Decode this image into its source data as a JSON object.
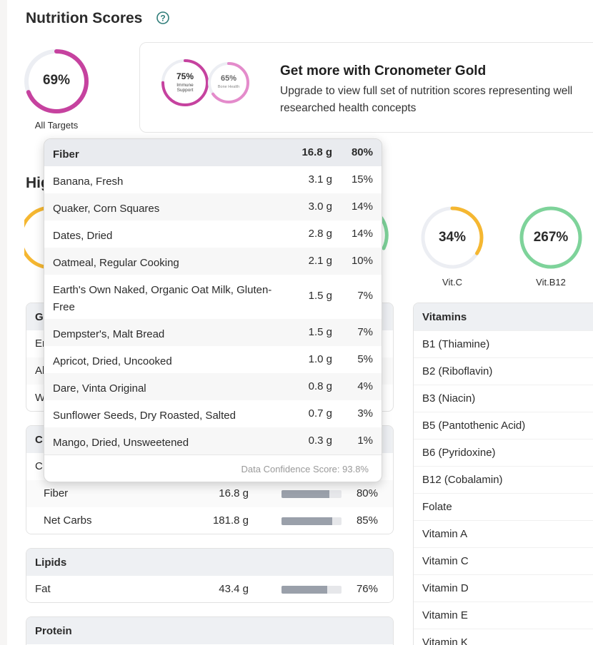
{
  "header": {
    "title": "Nutrition Scores",
    "help_icon": "question-circle-icon"
  },
  "all_targets": {
    "value": "69%",
    "label": "All Targets",
    "fraction": 0.69,
    "color": "#c6429f"
  },
  "gold_promo": {
    "title": "Get more with Cronometer Gold",
    "description": "Upgrade to view full set of nutrition scores representing well researched health concepts",
    "scores": [
      {
        "value": "75%",
        "label": "Immune Support",
        "fraction": 0.75,
        "color": "#c6429f"
      },
      {
        "value": "65%",
        "label": "Bone Health",
        "fraction": 0.65,
        "color": "#e48bcb"
      }
    ]
  },
  "highlights": {
    "title_partial": "Hig",
    "rings": [
      {
        "value": "34%",
        "label": "Vit.C",
        "fraction": 0.34,
        "color": "#f5b731"
      },
      {
        "value": "267%",
        "label": "Vit.B12",
        "fraction": 1.0,
        "color": "#7ed39a"
      }
    ]
  },
  "tooltip": {
    "header": {
      "name": "Fiber",
      "amount": "16.8 g",
      "pct": "80%"
    },
    "rows": [
      {
        "name": "Banana, Fresh",
        "amount": "3.1 g",
        "pct": "15%"
      },
      {
        "name": "Quaker, Corn Squares",
        "amount": "3.0 g",
        "pct": "14%"
      },
      {
        "name": "Dates, Dried",
        "amount": "2.8 g",
        "pct": "14%"
      },
      {
        "name": "Oatmeal, Regular Cooking",
        "amount": "2.1 g",
        "pct": "10%"
      },
      {
        "name": "Earth's Own Naked, Organic Oat Milk, Gluten-Free",
        "amount": "1.5 g",
        "pct": "7%"
      },
      {
        "name": "Dempster's, Malt Bread",
        "amount": "1.5 g",
        "pct": "7%"
      },
      {
        "name": "Apricot, Dried, Uncooked",
        "amount": "1.0 g",
        "pct": "5%"
      },
      {
        "name": "Dare, Vinta Original",
        "amount": "0.8 g",
        "pct": "4%"
      },
      {
        "name": "Sunflower Seeds, Dry Roasted, Salted",
        "amount": "0.7 g",
        "pct": "3%"
      },
      {
        "name": "Mango, Dried, Unsweetened",
        "amount": "0.3 g",
        "pct": "1%"
      }
    ],
    "footer": "Data Confidence Score: 93.8%"
  },
  "general_panel": {
    "head": "G",
    "rows": [
      "Er",
      "Al",
      "W"
    ]
  },
  "carbs_panel": {
    "head": "C",
    "row_partial": "C",
    "rows": [
      {
        "label": "Fiber",
        "amount": "16.8 g",
        "pct": "80%",
        "fraction": 0.8
      },
      {
        "label": "Net Carbs",
        "amount": "181.8 g",
        "pct": "85%",
        "fraction": 0.85
      }
    ]
  },
  "lipids_panel": {
    "head": "Lipids",
    "rows": [
      {
        "label": "Fat",
        "amount": "43.4 g",
        "pct": "76%",
        "fraction": 0.76
      }
    ]
  },
  "protein_panel": {
    "head": "Protein"
  },
  "vitamins_panel": {
    "head": "Vitamins",
    "rows": [
      "B1 (Thiamine)",
      "B2 (Riboflavin)",
      "B3 (Niacin)",
      "B5 (Pantothenic Acid)",
      "B6 (Pyridoxine)",
      "B12 (Cobalamin)",
      "Folate",
      "Vitamin A",
      "Vitamin C",
      "Vitamin D",
      "Vitamin E",
      "Vitamin K"
    ]
  }
}
